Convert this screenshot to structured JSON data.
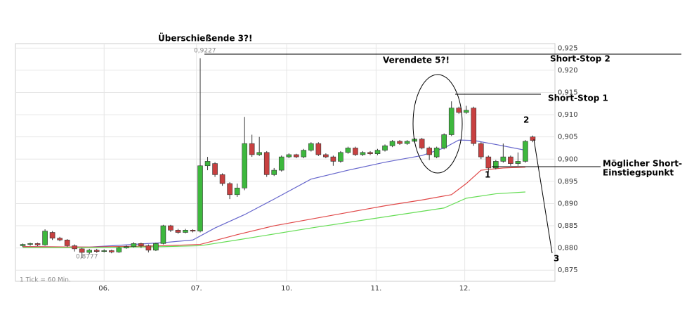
{
  "chart_data": {
    "type": "candlestick",
    "up_color": "#3db83d",
    "down_color": "#c84040",
    "x": [
      1,
      2,
      3,
      4,
      5,
      6,
      7,
      8,
      9,
      10,
      11,
      12,
      13,
      14,
      15,
      16,
      17,
      18,
      19,
      20,
      21,
      22,
      23,
      24,
      25,
      26,
      27,
      28,
      29,
      30,
      31,
      32,
      33,
      34,
      35,
      36,
      37,
      38,
      39,
      40,
      41,
      42,
      43,
      44,
      45,
      46,
      47,
      48,
      49,
      50,
      51,
      52,
      53,
      54,
      55,
      56,
      57,
      58,
      59,
      60,
      61,
      62,
      63,
      64,
      65,
      66,
      67,
      68,
      69,
      70
    ],
    "open": [
      0.8805,
      0.8808,
      0.881,
      0.8807,
      0.8835,
      0.8822,
      0.8818,
      0.8805,
      0.8798,
      0.879,
      0.8795,
      0.8792,
      0.8794,
      0.8791,
      0.88,
      0.8803,
      0.881,
      0.8805,
      0.8795,
      0.881,
      0.885,
      0.884,
      0.8835,
      0.884,
      0.8838,
      0.8985,
      0.899,
      0.8965,
      0.8945,
      0.892,
      0.8935,
      0.9035,
      0.901,
      0.9015,
      0.8965,
      0.8975,
      0.9005,
      0.901,
      0.9005,
      0.902,
      0.9035,
      0.901,
      0.9005,
      0.8995,
      0.9015,
      0.9025,
      0.901,
      0.9015,
      0.9012,
      0.902,
      0.903,
      0.904,
      0.9035,
      0.904,
      0.9045,
      0.9025,
      0.9005,
      0.9025,
      0.9055,
      0.9115,
      0.9105,
      0.9115,
      0.9035,
      0.9005,
      0.898,
      0.8995,
      0.9005,
      0.899,
      0.8995,
      0.905
    ],
    "high": [
      0.881,
      0.8812,
      0.8812,
      0.8842,
      0.8838,
      0.8825,
      0.882,
      0.8808,
      0.88,
      0.8798,
      0.8798,
      0.8797,
      0.8796,
      0.8803,
      0.8806,
      0.8813,
      0.8812,
      0.8808,
      0.8812,
      0.8852,
      0.8852,
      0.8843,
      0.8843,
      0.8842,
      0.9227,
      0.9005,
      0.8993,
      0.8968,
      0.8948,
      0.8945,
      0.9095,
      0.9055,
      0.905,
      0.9018,
      0.898,
      0.9008,
      0.9013,
      0.9012,
      0.9023,
      0.9038,
      0.9038,
      0.9013,
      0.9008,
      0.9018,
      0.9028,
      0.9028,
      0.9018,
      0.9018,
      0.9023,
      0.9033,
      0.9043,
      0.9043,
      0.9043,
      0.9048,
      0.9048,
      0.9028,
      0.9028,
      0.9058,
      0.913,
      0.9118,
      0.912,
      0.9118,
      0.9038,
      0.9008,
      0.8998,
      0.9035,
      0.9008,
      0.9015,
      0.9043,
      0.9053
    ],
    "low": [
      0.8802,
      0.8805,
      0.8804,
      0.8805,
      0.8818,
      0.8815,
      0.8802,
      0.8792,
      0.8777,
      0.8786,
      0.8789,
      0.879,
      0.8788,
      0.8789,
      0.8798,
      0.8801,
      0.88,
      0.879,
      0.8793,
      0.8808,
      0.8836,
      0.8832,
      0.8833,
      0.8835,
      0.8835,
      0.8975,
      0.896,
      0.894,
      0.891,
      0.8915,
      0.893,
      0.9005,
      0.9007,
      0.896,
      0.8962,
      0.8972,
      0.9002,
      0.9002,
      0.9002,
      0.9017,
      0.9007,
      0.9002,
      0.8985,
      0.8992,
      0.9012,
      0.9007,
      0.9007,
      0.9009,
      0.9009,
      0.9017,
      0.9027,
      0.9032,
      0.9032,
      0.9037,
      0.9022,
      0.8998,
      0.9002,
      0.9022,
      0.9052,
      0.9102,
      0.9102,
      0.903,
      0.9,
      0.897,
      0.8977,
      0.8992,
      0.8985,
      0.8985,
      0.8992,
      0.9038
    ],
    "close": [
      0.8808,
      0.881,
      0.8807,
      0.8838,
      0.8822,
      0.8818,
      0.8805,
      0.8798,
      0.879,
      0.8795,
      0.8792,
      0.8794,
      0.8791,
      0.88,
      0.8803,
      0.881,
      0.8805,
      0.8795,
      0.881,
      0.885,
      0.884,
      0.8835,
      0.884,
      0.8838,
      0.8985,
      0.8995,
      0.8965,
      0.8945,
      0.892,
      0.8935,
      0.9035,
      0.901,
      0.9015,
      0.8965,
      0.8975,
      0.9005,
      0.901,
      0.9005,
      0.902,
      0.9035,
      0.901,
      0.9005,
      0.8995,
      0.9015,
      0.9025,
      0.901,
      0.9015,
      0.9012,
      0.902,
      0.903,
      0.904,
      0.9035,
      0.904,
      0.9045,
      0.9025,
      0.901,
      0.9025,
      0.9055,
      0.9115,
      0.9105,
      0.911,
      0.9035,
      0.9005,
      0.898,
      0.8995,
      0.9005,
      0.899,
      0.8995,
      0.904,
      0.9042
    ],
    "lines": [
      {
        "color": "#6666cc",
        "x": [
          1,
          10,
          20,
          24,
          27,
          31,
          35,
          40,
          45,
          50,
          55,
          58,
          60,
          62,
          65,
          69
        ],
        "values": [
          0.8803,
          0.8802,
          0.8812,
          0.8818,
          0.8845,
          0.8875,
          0.891,
          0.8955,
          0.8975,
          0.8993,
          0.9008,
          0.9025,
          0.9043,
          0.9042,
          0.9033,
          0.902
        ]
      },
      {
        "color": "#e04848",
        "x": [
          1,
          10,
          20,
          25,
          30,
          35,
          40,
          45,
          50,
          55,
          59,
          61,
          63,
          66,
          69
        ],
        "values": [
          0.8803,
          0.8802,
          0.8805,
          0.8808,
          0.883,
          0.885,
          0.8865,
          0.888,
          0.8895,
          0.8908,
          0.892,
          0.8945,
          0.8975,
          0.898,
          0.8982
        ]
      },
      {
        "color": "#66dd55",
        "x": [
          1,
          10,
          20,
          25,
          30,
          40,
          50,
          58,
          61,
          65,
          69
        ],
        "values": [
          0.8801,
          0.8801,
          0.8803,
          0.8805,
          0.8818,
          0.8845,
          0.887,
          0.889,
          0.8912,
          0.8922,
          0.8926
        ]
      }
    ],
    "xlim": [
      0,
      73
    ],
    "xticks": [
      {
        "value": 12,
        "label": "06."
      },
      {
        "value": 24.5,
        "label": "07."
      },
      {
        "value": 36.7,
        "label": "10."
      },
      {
        "value": 48.8,
        "label": "11."
      },
      {
        "value": 60.8,
        "label": "12."
      }
    ],
    "ylim": [
      0.8725,
      0.926
    ],
    "yticks": [
      {
        "value": 0.875,
        "label": "0,875"
      },
      {
        "value": 0.88,
        "label": "0,880"
      },
      {
        "value": 0.885,
        "label": "0,885"
      },
      {
        "value": 0.89,
        "label": "0,890"
      },
      {
        "value": 0.895,
        "label": "0,895"
      },
      {
        "value": 0.9,
        "label": "0,900"
      },
      {
        "value": 0.905,
        "label": "0,905"
      },
      {
        "value": 0.91,
        "label": "0,910"
      },
      {
        "value": 0.915,
        "label": "0,915"
      },
      {
        "value": 0.92,
        "label": "0,920"
      },
      {
        "value": 0.925,
        "label": "0,925"
      }
    ],
    "grid": true,
    "annotations": [
      "Überschießende 3?!",
      "0,9227",
      "Verendete 5?!",
      "Short-Stop 2",
      "Short-Stop 1",
      "Möglicher Short-",
      "Einstiegspunkt",
      "1",
      "2",
      "3",
      "0,8777",
      "1 Tick = 60 Min."
    ]
  }
}
